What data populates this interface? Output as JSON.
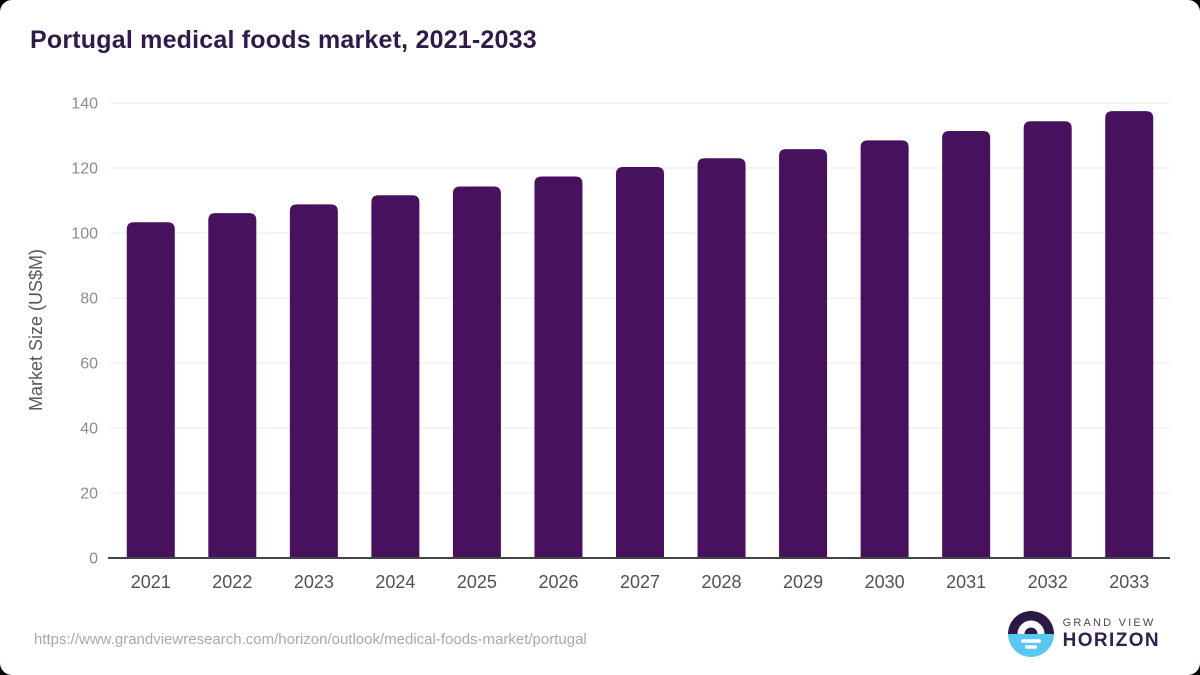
{
  "title": "Portugal medical foods market, 2021-2033",
  "chart_data": {
    "type": "bar",
    "title": "Portugal medical foods market, 2021-2033",
    "categories": [
      "2021",
      "2022",
      "2023",
      "2024",
      "2025",
      "2026",
      "2027",
      "2028",
      "2029",
      "2030",
      "2031",
      "2032",
      "2033"
    ],
    "values": [
      103.3,
      106.1,
      108.8,
      111.6,
      114.3,
      117.4,
      120.3,
      123.0,
      125.8,
      128.5,
      131.4,
      134.4,
      137.5
    ],
    "xlabel": "",
    "ylabel": "Market Size (US$M)",
    "ylim": [
      0,
      140
    ],
    "ytick_step": 20,
    "grid": "horizontal-only",
    "legend": "none",
    "bar_color": "#47115e"
  },
  "colors": {
    "bar": "#47115e",
    "title": "#301a4a",
    "gridline": "#e9e9eb",
    "axis_line": "#434345",
    "y_tick_label": "#8a8c8e",
    "x_tick_label": "#515154",
    "axis_title": "#58595b",
    "url_text": "#a7a9ac",
    "logo_dark": "#2a1a45",
    "logo_blue": "#58c7f3"
  },
  "footer": {
    "source_url": "https://www.grandviewresearch.com/horizon/outlook/medical-foods-market/portugal",
    "logo": {
      "line1": "GRAND VIEW",
      "line2": "HORIZON"
    }
  }
}
